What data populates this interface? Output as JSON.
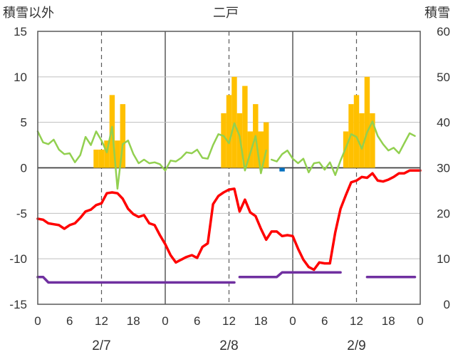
{
  "chart_data": {
    "type": "bar+line",
    "title": "二戸",
    "left_axis_label": "積雪以外",
    "right_axis_label": "積雪",
    "y_left": {
      "min": -15,
      "max": 15,
      "ticks": [
        15,
        10,
        5,
        0,
        -5,
        -10,
        -15
      ]
    },
    "y_right": {
      "min": 0,
      "max": 60,
      "ticks": [
        60,
        50,
        40,
        30,
        20,
        10,
        0
      ]
    },
    "x_hours": {
      "min": 0,
      "max": 72
    },
    "x_tick_labels": [
      "0",
      "6",
      "12",
      "18",
      "0",
      "6",
      "12",
      "18",
      "0",
      "6",
      "12",
      "18",
      "0"
    ],
    "x_tick_hours": [
      0,
      6,
      12,
      18,
      24,
      30,
      36,
      42,
      48,
      54,
      60,
      66,
      72
    ],
    "day_labels": [
      "2/7",
      "2/8",
      "2/9"
    ],
    "day_label_hours": [
      12,
      36,
      60
    ],
    "grid": {
      "day_lines_solid": [
        24,
        48
      ],
      "noon_lines_dashed": [
        12,
        36,
        60
      ]
    },
    "colors": {
      "bars": "#ffc000",
      "green": "#92d050",
      "red": "#ff0000",
      "purple": "#7030a0",
      "blue": "#0070c0"
    },
    "bars_orange": {
      "hours": [
        11,
        12,
        13,
        14,
        15,
        16,
        17,
        35,
        36,
        37,
        38,
        39,
        40,
        41,
        42,
        43,
        44,
        58,
        59,
        60,
        61,
        62,
        63,
        64,
        65
      ],
      "values": [
        2,
        2,
        3,
        8,
        3,
        7,
        0,
        6,
        8,
        10,
        6,
        9,
        4,
        7,
        4,
        5,
        0,
        4,
        7,
        8,
        6,
        10,
        6,
        0,
        0
      ]
    },
    "bars_blue": {
      "hours": [
        46
      ],
      "values": [
        -0.4
      ]
    },
    "green_line": {
      "segments": [
        {
          "x": [
            0,
            1,
            2,
            3,
            4,
            5,
            6,
            7,
            8,
            9,
            10,
            11,
            12,
            13,
            14,
            15,
            16,
            17,
            18,
            19,
            20,
            21,
            22,
            23,
            24,
            25,
            26,
            27,
            28,
            29,
            30,
            31,
            32,
            33,
            34,
            35,
            36,
            37,
            38,
            39,
            40,
            41,
            42,
            43
          ],
          "y": [
            4,
            2.8,
            2.6,
            3.1,
            2,
            1.5,
            1.6,
            0.6,
            1.4,
            3.4,
            2.5,
            4,
            3,
            1.7,
            4.5,
            -2.3,
            2.6,
            3,
            1.5,
            0.5,
            0.9,
            0.5,
            0.6,
            0.4,
            -0.3,
            0.8,
            0.7,
            1.1,
            1.7,
            1.6,
            2,
            1.1,
            1,
            2.5,
            3.7,
            3.5,
            2.7,
            4.9,
            3.5,
            -0.3,
            1.6,
            3.5,
            -0.6,
            1.9
          ]
        },
        {
          "x": [
            44,
            45,
            46,
            47,
            48,
            49,
            50,
            51,
            52,
            53,
            54,
            55,
            56,
            57,
            58,
            59,
            60,
            61,
            62,
            63,
            64,
            65,
            66,
            67,
            68,
            69,
            70,
            71
          ],
          "y": [
            0.9,
            0.7,
            1.5,
            1.9,
            1,
            0.5,
            1,
            -0.5,
            0.5,
            0.6,
            -0.2,
            0.6,
            -0.8,
            0.8,
            2.2,
            3.7,
            3.4,
            2.1,
            3.9,
            5.1,
            3.5,
            2.6,
            1.9,
            2.2,
            1.6,
            2.7,
            3.8,
            3.5
          ]
        }
      ]
    },
    "red_line": {
      "x": [
        0,
        1,
        2,
        3,
        4,
        5,
        6,
        7,
        8,
        9,
        10,
        11,
        12,
        13,
        14,
        15,
        16,
        17,
        18,
        19,
        20,
        21,
        22,
        23,
        24,
        25,
        26,
        27,
        28,
        29,
        30,
        31,
        32,
        33,
        34,
        35,
        36,
        37,
        38,
        39,
        40,
        41,
        42,
        43,
        44,
        45,
        46,
        47,
        48,
        49,
        50,
        51,
        52,
        53,
        54,
        55,
        56,
        57,
        58,
        59,
        60,
        61,
        62,
        63,
        64,
        65,
        66,
        67,
        68,
        69,
        70,
        71,
        72
      ],
      "y": [
        -5.6,
        -5.7,
        -6.1,
        -6.2,
        -6.3,
        -6.7,
        -6.3,
        -6.1,
        -5.5,
        -4.8,
        -4.6,
        -4.1,
        -3.9,
        -2.8,
        -2.7,
        -2.8,
        -3.4,
        -4.5,
        -5.1,
        -5.4,
        -5.2,
        -6.1,
        -6.3,
        -7.4,
        -8.4,
        -9.6,
        -10.4,
        -10.1,
        -9.8,
        -9.6,
        -9.9,
        -8.7,
        -8.3,
        -4,
        -3.1,
        -2.7,
        -2.4,
        -2.3,
        -4.8,
        -3.5,
        -4.9,
        -5.3,
        -6.7,
        -7.9,
        -7,
        -7,
        -7.5,
        -7.4,
        -7.5,
        -8.9,
        -10.1,
        -10.9,
        -11.2,
        -10.4,
        -10.5,
        -10.5,
        -7.1,
        -4.5,
        -3,
        -1.6,
        -1.4,
        -1,
        -1.1,
        -0.6,
        -1.4,
        -1.5,
        -1.3,
        -1,
        -0.6,
        -0.6,
        -0.3,
        -0.3,
        -0.3
      ]
    },
    "purple_line": {
      "segments": [
        {
          "x": [
            0,
            1,
            2,
            3,
            4,
            5,
            6,
            7,
            8,
            9,
            10,
            11,
            12,
            13,
            14,
            15,
            16,
            17,
            18,
            19,
            20,
            21,
            22,
            23,
            24,
            25,
            26,
            27,
            28,
            29,
            30,
            31,
            32,
            33,
            34,
            35,
            36,
            37
          ],
          "y": [
            -12,
            -12,
            -12.6,
            -12.6,
            -12.6,
            -12.6,
            -12.6,
            -12.6,
            -12.6,
            -12.6,
            -12.6,
            -12.6,
            -12.6,
            -12.6,
            -12.6,
            -12.6,
            -12.6,
            -12.6,
            -12.6,
            -12.6,
            -12.6,
            -12.6,
            -12.6,
            -12.6,
            -12.6,
            -12.6,
            -12.6,
            -12.6,
            -12.6,
            -12.6,
            -12.6,
            -12.6,
            -12.6,
            -12.6,
            -12.6,
            -12.6,
            -12.6,
            -12.6
          ]
        },
        {
          "x": [
            38,
            39,
            40,
            41,
            42,
            43,
            44,
            45,
            46,
            47,
            48,
            49,
            50,
            51,
            52,
            53,
            54,
            55,
            56,
            57
          ],
          "y": [
            -12,
            -12,
            -12,
            -12,
            -12,
            -12,
            -12,
            -12,
            -11.5,
            -11.5,
            -11.5,
            -11.5,
            -11.5,
            -11.5,
            -11.5,
            -11.5,
            -11.5,
            -11.5,
            -11.5,
            -11.5
          ]
        },
        {
          "x": [
            62,
            63,
            64,
            65,
            66,
            67,
            68,
            69,
            70,
            71
          ],
          "y": [
            -12,
            -12,
            -12,
            -12,
            -12,
            -12,
            -12,
            -12,
            -12,
            -12
          ]
        }
      ]
    }
  }
}
